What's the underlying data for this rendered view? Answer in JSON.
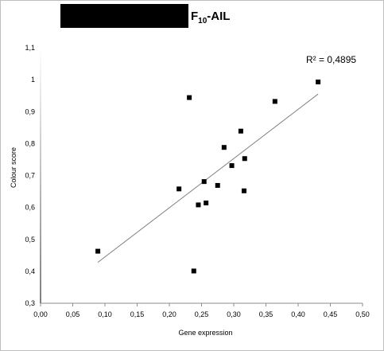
{
  "header": {
    "title_base": "F",
    "title_sub": "10",
    "title_suffix": "-AIL"
  },
  "chart_data": {
    "type": "scatter",
    "xlabel": "Gene expression",
    "ylabel": "Colour score",
    "xlim": [
      0,
      0.5
    ],
    "ylim": [
      0.3,
      1.1
    ],
    "x_ticks": [
      0,
      0.05,
      0.1,
      0.15,
      0.2,
      0.25,
      0.3,
      0.35,
      0.4,
      0.45,
      0.5
    ],
    "y_ticks": [
      0.3,
      0.4,
      0.5,
      0.6,
      0.7,
      0.8,
      0.9,
      1.0,
      1.1
    ],
    "x_tick_labels": [
      "0,00",
      "0,05",
      "0,10",
      "0,15",
      "0,20",
      "0,25",
      "0,30",
      "0,35",
      "0,40",
      "0,45",
      "0,50"
    ],
    "y_tick_labels": [
      "0,3",
      "0,4",
      "0,5",
      "0,6",
      "0,7",
      "0,8",
      "0,9",
      "1",
      "1,1"
    ],
    "points": [
      {
        "x": 0.089,
        "y": 0.463
      },
      {
        "x": 0.215,
        "y": 0.658
      },
      {
        "x": 0.231,
        "y": 0.944
      },
      {
        "x": 0.238,
        "y": 0.401
      },
      {
        "x": 0.245,
        "y": 0.608
      },
      {
        "x": 0.254,
        "y": 0.681
      },
      {
        "x": 0.257,
        "y": 0.614
      },
      {
        "x": 0.275,
        "y": 0.669
      },
      {
        "x": 0.285,
        "y": 0.788
      },
      {
        "x": 0.297,
        "y": 0.731
      },
      {
        "x": 0.311,
        "y": 0.839
      },
      {
        "x": 0.316,
        "y": 0.652
      },
      {
        "x": 0.317,
        "y": 0.753
      },
      {
        "x": 0.364,
        "y": 0.932
      },
      {
        "x": 0.431,
        "y": 0.993
      }
    ],
    "trendline": {
      "x0": 0.089,
      "y0": 0.428,
      "x1": 0.431,
      "y1": 0.955
    },
    "r_squared_label": "R² = 0,4895",
    "marker_color": "#000000",
    "trendline_color": "#808080",
    "grid": false
  }
}
